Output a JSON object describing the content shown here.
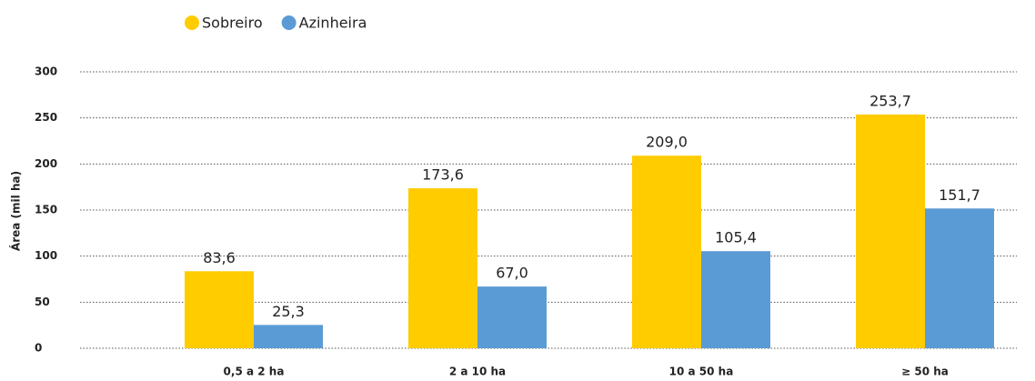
{
  "chart_data": {
    "type": "bar",
    "y_label": "Área (mil ha)",
    "categories": [
      "0,5 a 2 ha",
      "2 a 10 ha",
      "10 a 50 ha",
      "≥ 50 ha"
    ],
    "series": [
      {
        "name": "Sobreiro",
        "color": "#ffcc00",
        "values": [
          83.6,
          173.6,
          209.0,
          253.7
        ],
        "value_labels": [
          "83,6",
          "173,6",
          "209,0",
          "253,7"
        ]
      },
      {
        "name": "Azinheira",
        "color": "#5b9bd5",
        "values": [
          25.3,
          67.0,
          105.4,
          151.7
        ],
        "value_labels": [
          "25,3",
          "67,0",
          "105,4",
          "151,7"
        ]
      }
    ],
    "ylim": [
      0,
      300
    ],
    "yticks": [
      0,
      50,
      100,
      150,
      200,
      250,
      300
    ],
    "grid": true,
    "legend": "top"
  }
}
